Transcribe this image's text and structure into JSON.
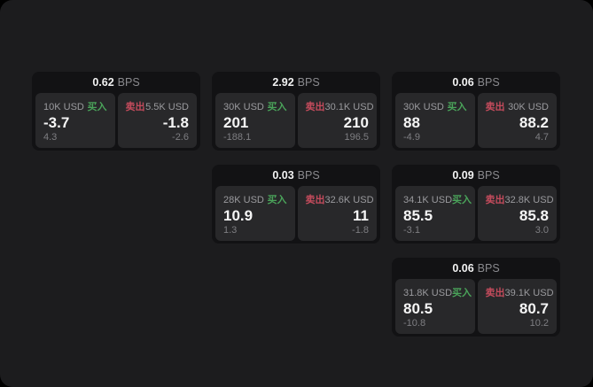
{
  "labels": {
    "buy": "买入",
    "sell": "卖出",
    "bps_unit": "BPS"
  },
  "colors": {
    "buy_green": "#4aa35a",
    "sell_red": "#c44b5c",
    "page_background": "#1c1c1e",
    "card_background": "#121214",
    "panel_background": "#28282a"
  },
  "cards": [
    {
      "bps_value": "0.62",
      "buy": {
        "amount": "10K USD",
        "price": "-3.7",
        "sub": "4.3"
      },
      "sell": {
        "amount": "5.5K USD",
        "price": "-1.8",
        "sub": "-2.6"
      }
    },
    {
      "bps_value": "2.92",
      "buy": {
        "amount": "30K USD",
        "price": "201",
        "sub": "-188.1"
      },
      "sell": {
        "amount": "30.1K USD",
        "price": "210",
        "sub": "196.5"
      }
    },
    {
      "bps_value": "0.06",
      "buy": {
        "amount": "30K USD",
        "price": "88",
        "sub": "-4.9"
      },
      "sell": {
        "amount": "30K USD",
        "price": "88.2",
        "sub": "4.7"
      }
    },
    {
      "bps_value": "0.03",
      "buy": {
        "amount": "28K USD",
        "price": "10.9",
        "sub": "1.3"
      },
      "sell": {
        "amount": "32.6K USD",
        "price": "11",
        "sub": "-1.8"
      }
    },
    {
      "bps_value": "0.09",
      "buy": {
        "amount": "34.1K USD",
        "price": "85.5",
        "sub": "-3.1"
      },
      "sell": {
        "amount": "32.8K USD",
        "price": "85.8",
        "sub": "3.0"
      }
    },
    {
      "bps_value": "0.06",
      "buy": {
        "amount": "31.8K USD",
        "price": "80.5",
        "sub": "-10.8"
      },
      "sell": {
        "amount": "39.1K USD",
        "price": "80.7",
        "sub": "10.2"
      }
    }
  ]
}
